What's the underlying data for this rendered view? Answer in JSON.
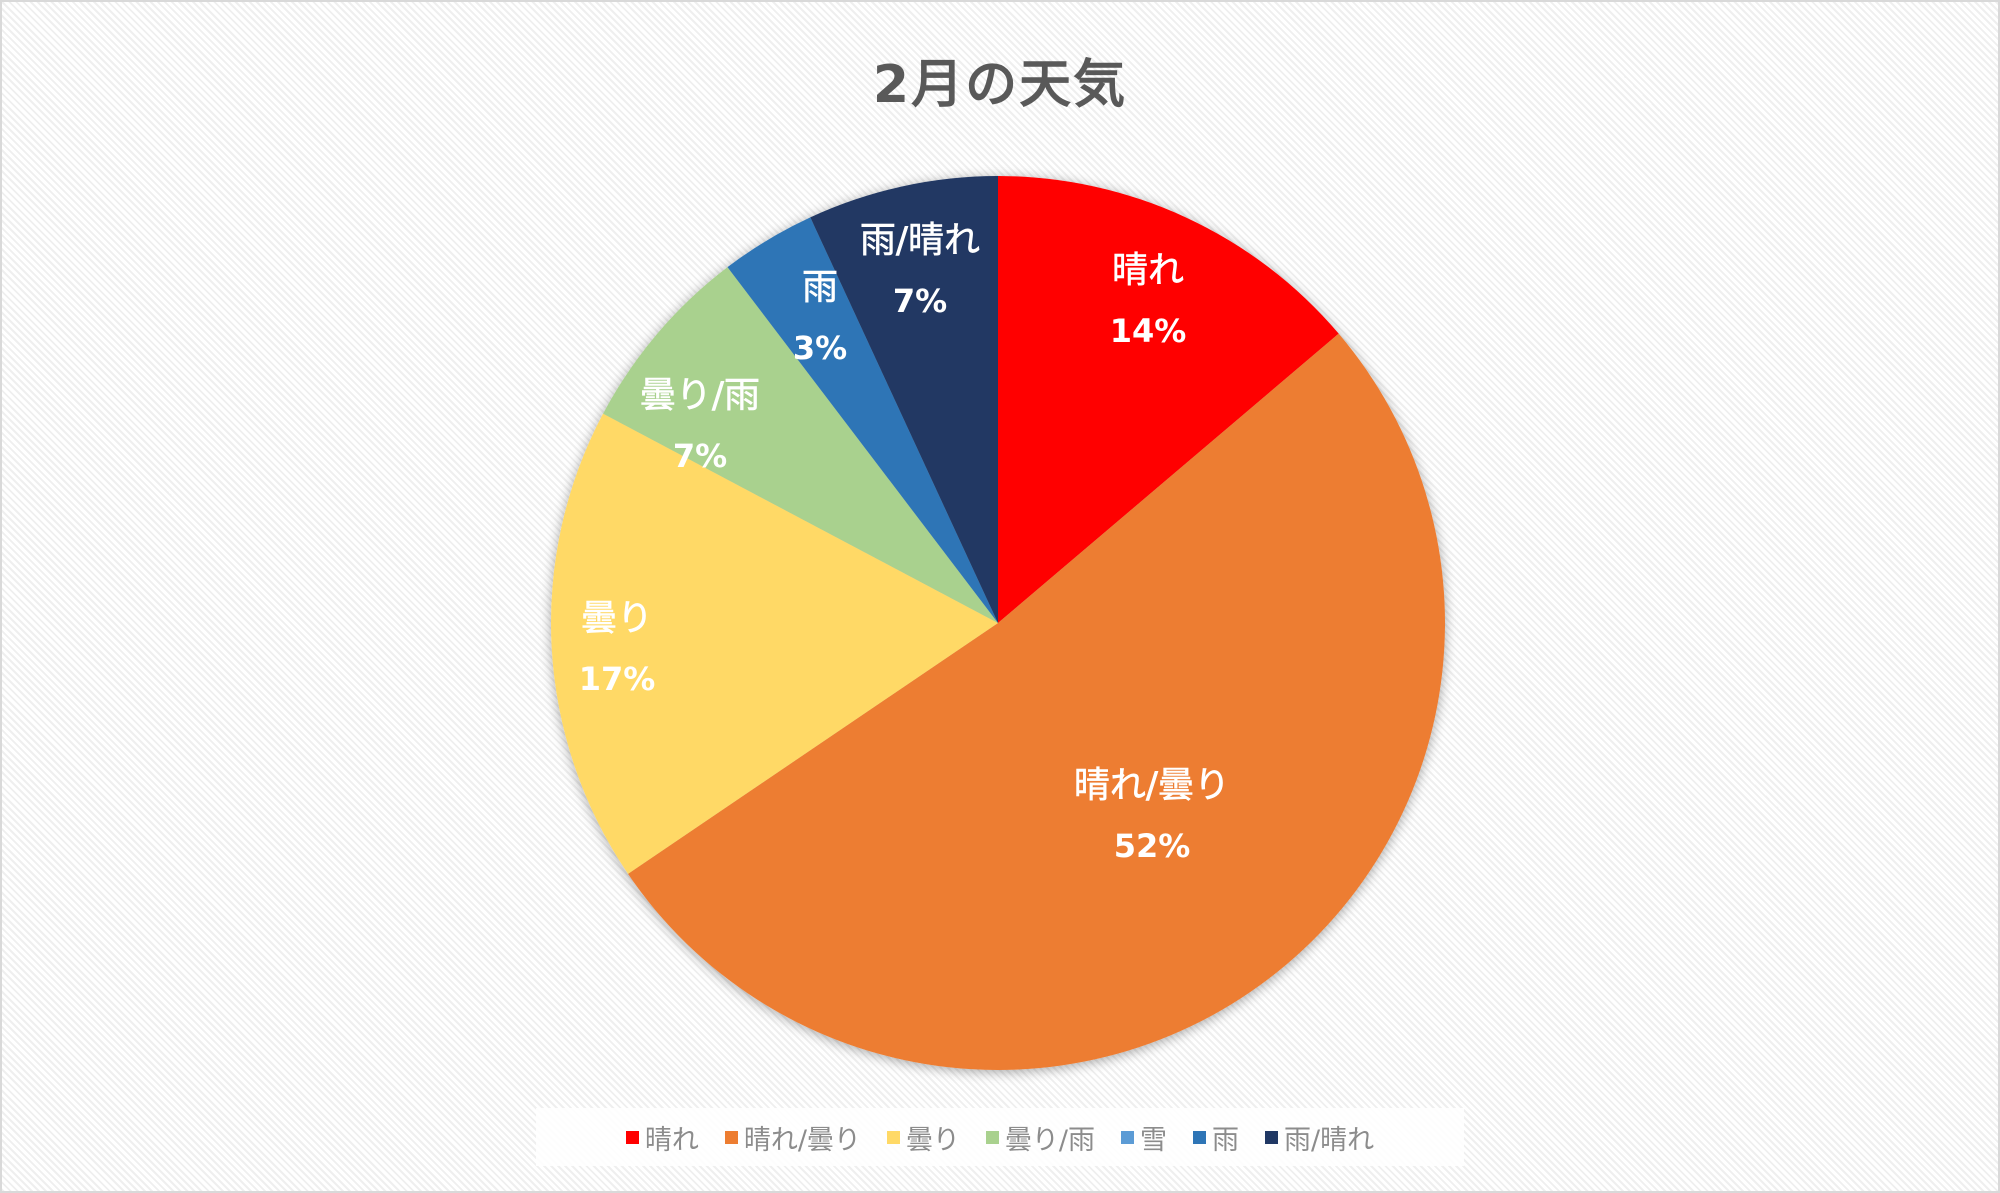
{
  "chart_data": {
    "type": "pie",
    "title": "2月の天気",
    "categories": [
      "晴れ",
      "晴れ/曇り",
      "曇り",
      "曇り/雨",
      "雪",
      "雨",
      "雨/晴れ"
    ],
    "values": [
      4,
      15,
      5,
      2,
      0,
      1,
      2
    ],
    "percent_labels": [
      "14%",
      "52%",
      "17%",
      "7%",
      "0%",
      "3%",
      "7%"
    ],
    "colors": [
      "#ff0000",
      "#ed7d31",
      "#ffd966",
      "#a9d18e",
      "#5b9bd5",
      "#2e75b6",
      "#203864"
    ],
    "start_angle_deg": 0,
    "direction": "clockwise",
    "data_labels": "category name and percentage",
    "legend_position": "bottom",
    "grid": false
  },
  "title": "2月の天気",
  "legend": [
    {
      "label": "晴れ",
      "color": "#ff0000"
    },
    {
      "label": "晴れ/曇り",
      "color": "#ed7d31"
    },
    {
      "label": "曇り",
      "color": "#ffd966"
    },
    {
      "label": "曇り/雨",
      "color": "#a9d18e"
    },
    {
      "label": "雪",
      "color": "#5b9bd5"
    },
    {
      "label": "雨",
      "color": "#2e75b6"
    },
    {
      "label": "雨/晴れ",
      "color": "#203864"
    }
  ],
  "labels": [
    {
      "name": "晴れ",
      "pct": "14%"
    },
    {
      "name": "晴れ/曇り",
      "pct": "52%"
    },
    {
      "name": "曇り",
      "pct": "17%"
    },
    {
      "name": "曇り/雨",
      "pct": "7%"
    },
    {
      "name": "雨",
      "pct": "3%"
    },
    {
      "name": "雨/晴れ",
      "pct": "7%"
    }
  ]
}
